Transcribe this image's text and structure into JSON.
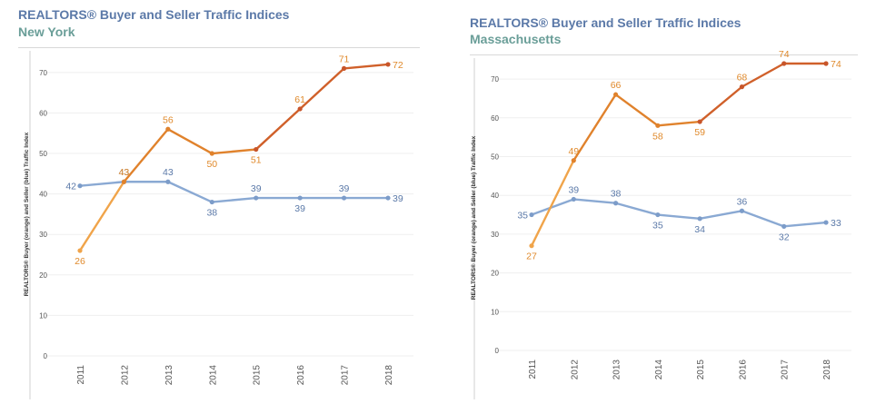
{
  "chart_data": [
    {
      "type": "line",
      "title": "REALTORS® Buyer and Seller Traffic Indices",
      "subtitle": "New York",
      "ylabel": "REALTORS® Buyer (orange) and Seller (blue) Traffic Index",
      "xlabel": "",
      "categories": [
        "2011",
        "2012",
        "2013",
        "2014",
        "2015",
        "2016",
        "2017",
        "2018"
      ],
      "yticks": [
        0,
        10,
        20,
        30,
        40,
        50,
        60,
        70
      ],
      "ylim": [
        0,
        74
      ],
      "grid": true,
      "series": [
        {
          "key": "buyer",
          "values": [
            26,
            43,
            56,
            50,
            51,
            61,
            71,
            72
          ],
          "color": "#e07b24"
        },
        {
          "key": "seller",
          "values": [
            42,
            43,
            43,
            38,
            39,
            39,
            39,
            39
          ],
          "color": "#8aa9d3"
        }
      ]
    },
    {
      "type": "line",
      "title": "REALTORS® Buyer and Seller Traffic Indices",
      "subtitle": "Massachusetts",
      "ylabel": "REALTORS® Buyer (orange) and Seller (blue) Traffic Index",
      "xlabel": "",
      "categories": [
        "2011",
        "2012",
        "2013",
        "2014",
        "2015",
        "2016",
        "2017",
        "2018"
      ],
      "yticks": [
        0,
        10,
        20,
        30,
        40,
        50,
        60,
        70
      ],
      "ylim": [
        0,
        74
      ],
      "grid": true,
      "series": [
        {
          "key": "buyer",
          "values": [
            27,
            49,
            66,
            58,
            59,
            68,
            74,
            74
          ],
          "color": "#e07b24"
        },
        {
          "key": "seller",
          "values": [
            35,
            39,
            38,
            35,
            34,
            36,
            32,
            33
          ],
          "color": "#8aa9d3"
        }
      ]
    }
  ]
}
